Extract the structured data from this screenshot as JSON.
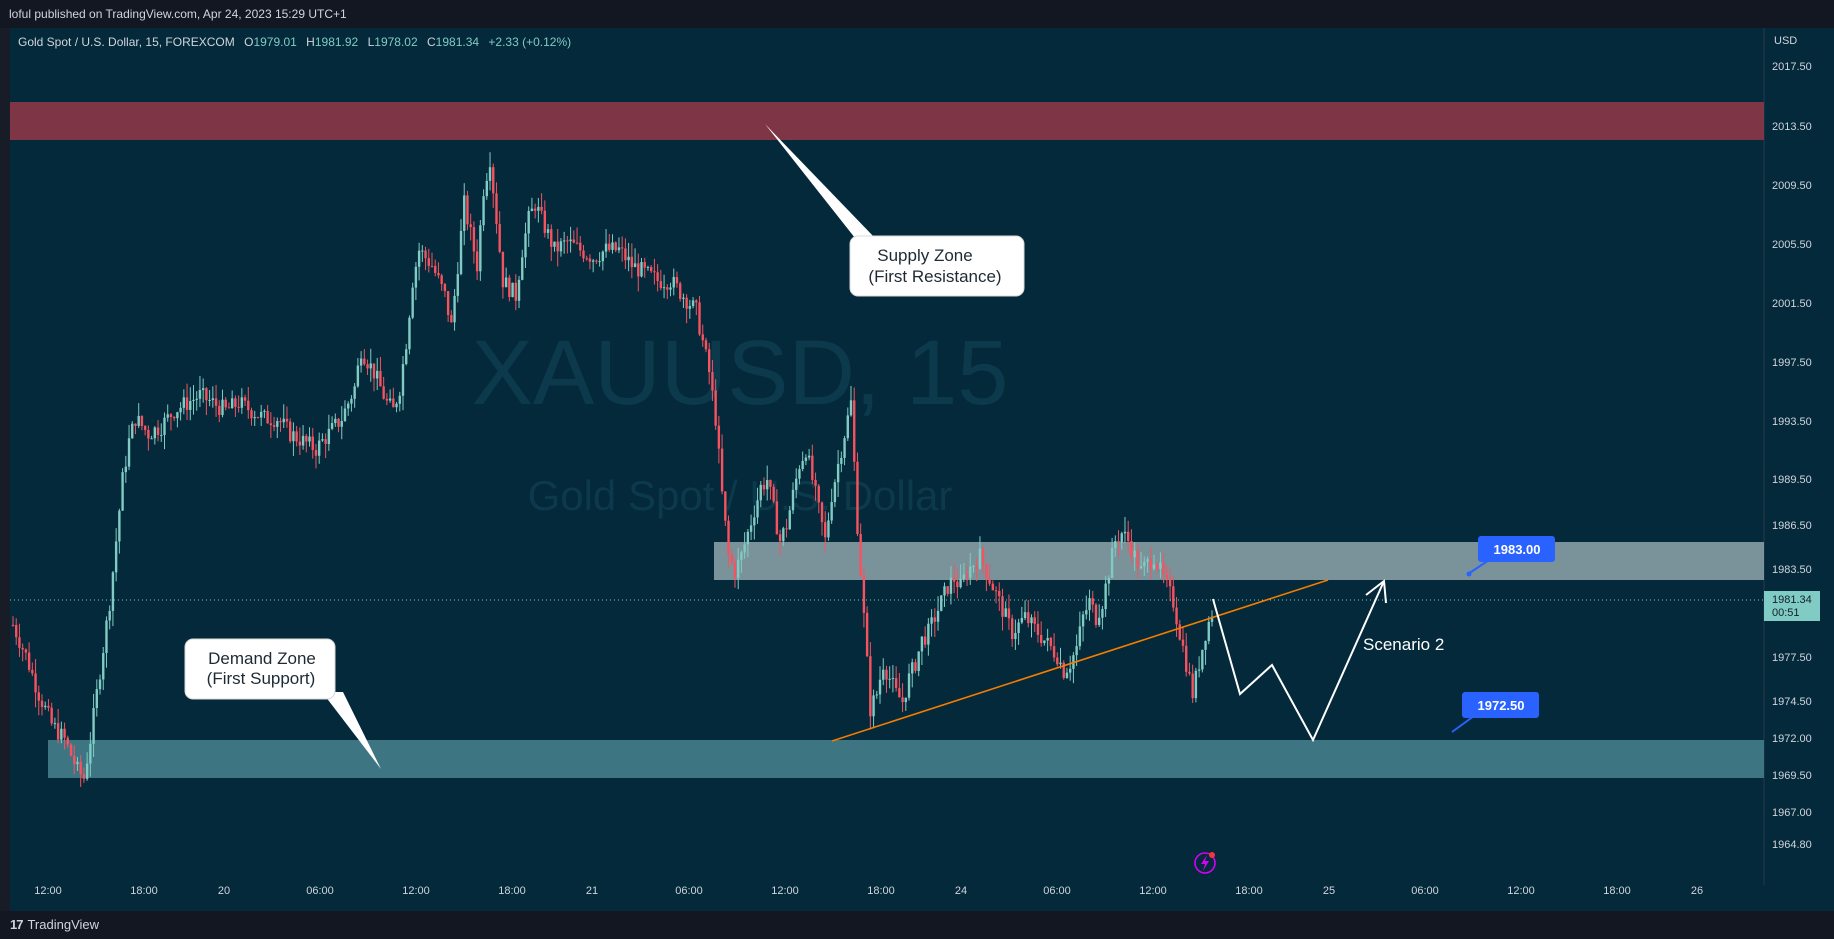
{
  "header": {
    "published_text": "loful published on TradingView.com, Apr 24, 2023 15:29 UTC+1"
  },
  "legend": {
    "symbol_text": "Gold Spot / U.S. Dollar, 15, FOREXCOM",
    "open_label": "O",
    "open_value": "1979.01",
    "high_label": "H",
    "high_value": "1981.92",
    "low_label": "L",
    "low_value": "1978.02",
    "close_label": "C",
    "close_value": "1981.34",
    "change_value": "+2.33 (+0.12%)"
  },
  "watermark": {
    "symbol": "XAUUSD, 15",
    "description": "Gold Spot / U.S. Dollar"
  },
  "price_axis": {
    "currency": "USD",
    "ticks": [
      "2017.50",
      "2013.50",
      "2009.50",
      "2005.50",
      "2001.50",
      "1997.50",
      "1993.50",
      "1989.50",
      "1986.50",
      "1983.50",
      "1977.50",
      "1974.50",
      "1972.00",
      "1969.50",
      "1967.00",
      "1964.80"
    ],
    "last_price_label": "1981.34",
    "countdown_label": "00:51"
  },
  "time_axis": {
    "ticks": [
      "12:00",
      "18:00",
      "20",
      "06:00",
      "12:00",
      "18:00",
      "21",
      "06:00",
      "12:00",
      "18:00",
      "24",
      "06:00",
      "12:00",
      "18:00",
      "25",
      "06:00",
      "12:00",
      "18:00",
      "26"
    ]
  },
  "annotations": {
    "supply_zone": "Supply Zone\n(First Resistance)",
    "supply_line1": "Supply Zone",
    "supply_line2": "(First Resistance)",
    "demand_line1": "Demand Zone",
    "demand_line2": "(First Support)",
    "scenario_label": "Scenario 2",
    "price_tag_upper": "1983.00",
    "price_tag_lower": "1972.50"
  },
  "footer": {
    "brand": "TradingView",
    "mark": "17"
  },
  "colors": {
    "background": "#03293a",
    "bull": "#80cbc4",
    "bear": "#f7525f",
    "supply_zone": "#7e3545",
    "demand_zone": "#3e7583",
    "middle_zone": "#8fa6ac",
    "trendline": "#f57c00",
    "tag": "#2962ff"
  },
  "chart_data": {
    "type": "candlestick",
    "title": "Gold Spot / U.S. Dollar, 15, FOREXCOM",
    "ylim": [
      1963.5,
      2019.5
    ],
    "last_price": 1981.34,
    "ohlc_last": {
      "open": 1979.01,
      "high": 1981.92,
      "low": 1978.02,
      "close": 1981.34,
      "change": 2.33,
      "change_pct": 0.12
    },
    "price_path": [
      [
        0,
        1980.5
      ],
      [
        4,
        1978.5
      ],
      [
        8,
        1976
      ],
      [
        12,
        1974
      ],
      [
        16,
        1973
      ],
      [
        20,
        1971
      ],
      [
        22,
        1970.5
      ],
      [
        24,
        1973
      ],
      [
        26,
        1976
      ],
      [
        28,
        1979
      ],
      [
        30,
        1982
      ],
      [
        32,
        1986
      ],
      [
        34,
        1990
      ],
      [
        36,
        1992.5
      ],
      [
        38,
        1994
      ],
      [
        42,
        1993
      ],
      [
        46,
        1993.5
      ],
      [
        50,
        1994.5
      ],
      [
        54,
        1995
      ],
      [
        58,
        1995.5
      ],
      [
        62,
        1995
      ],
      [
        66,
        1994.5
      ],
      [
        70,
        1995
      ],
      [
        74,
        1994.5
      ],
      [
        78,
        1994
      ],
      [
        82,
        1994
      ],
      [
        86,
        1993
      ],
      [
        90,
        1992.5
      ],
      [
        94,
        1992
      ],
      [
        98,
        1993
      ],
      [
        102,
        1994
      ],
      [
        106,
        1996
      ],
      [
        108,
        1998.5
      ],
      [
        112,
        1997
      ],
      [
        116,
        1995
      ],
      [
        118,
        1994.5
      ],
      [
        120,
        1996
      ],
      [
        122,
        1999
      ],
      [
        124,
        2003
      ],
      [
        126,
        2005
      ],
      [
        130,
        2004
      ],
      [
        134,
        2002
      ],
      [
        136,
        2000
      ],
      [
        138,
        2004
      ],
      [
        140,
        2008
      ],
      [
        144,
        2004
      ],
      [
        146,
        2009
      ],
      [
        148,
        2011
      ],
      [
        150,
        2007
      ],
      [
        152,
        2003
      ],
      [
        156,
        2002
      ],
      [
        158,
        2005
      ],
      [
        160,
        2007
      ],
      [
        162,
        2008
      ],
      [
        164,
        2007
      ],
      [
        166,
        2006
      ],
      [
        168,
        2005
      ],
      [
        172,
        2005.5
      ],
      [
        176,
        2005
      ],
      [
        180,
        2004.5
      ],
      [
        184,
        2005
      ],
      [
        188,
        2005
      ],
      [
        192,
        2004
      ],
      [
        196,
        2003.5
      ],
      [
        200,
        2003
      ],
      [
        204,
        2003
      ],
      [
        208,
        2002
      ],
      [
        212,
        2001
      ],
      [
        214,
        1999
      ],
      [
        216,
        1997
      ],
      [
        218,
        1994
      ],
      [
        220,
        1989
      ],
      [
        222,
        1985
      ],
      [
        224,
        1984
      ],
      [
        226,
        1985
      ],
      [
        228,
        1986.5
      ],
      [
        230,
        1988
      ],
      [
        232,
        1989.5
      ],
      [
        234,
        1990
      ],
      [
        236,
        1988
      ],
      [
        238,
        1986
      ],
      [
        240,
        1987
      ],
      [
        242,
        1989
      ],
      [
        244,
        1991
      ],
      [
        246,
        1992
      ],
      [
        248,
        1990
      ],
      [
        250,
        1988
      ],
      [
        252,
        1986
      ],
      [
        254,
        1989
      ],
      [
        256,
        1991
      ],
      [
        258,
        1993
      ],
      [
        260,
        1995
      ],
      [
        262,
        1987
      ],
      [
        264,
        1981
      ],
      [
        266,
        1975
      ],
      [
        268,
        1976
      ],
      [
        270,
        1978
      ],
      [
        272,
        1977
      ],
      [
        274,
        1976
      ],
      [
        276,
        1975.5
      ],
      [
        278,
        1977
      ],
      [
        280,
        1978
      ],
      [
        282,
        1979.5
      ],
      [
        284,
        1980
      ],
      [
        286,
        1981
      ],
      [
        288,
        1982
      ],
      [
        290,
        1983
      ],
      [
        292,
        1983.5
      ],
      [
        294,
        1983
      ],
      [
        296,
        1984
      ],
      [
        298,
        1984.5
      ],
      [
        300,
        1985
      ],
      [
        302,
        1984
      ],
      [
        304,
        1983
      ],
      [
        306,
        1982
      ],
      [
        308,
        1981
      ],
      [
        310,
        1980
      ],
      [
        312,
        1980.5
      ],
      [
        314,
        1981
      ],
      [
        316,
        1980.5
      ],
      [
        318,
        1980
      ],
      [
        320,
        1979.5
      ],
      [
        322,
        1979
      ],
      [
        324,
        1978.5
      ],
      [
        326,
        1977.5
      ],
      [
        328,
        1978
      ],
      [
        330,
        1979
      ],
      [
        332,
        1981
      ],
      [
        334,
        1982
      ],
      [
        336,
        1981
      ],
      [
        338,
        1982
      ],
      [
        340,
        1984
      ],
      [
        342,
        1986
      ],
      [
        344,
        1986.5
      ],
      [
        346,
        1986
      ],
      [
        348,
        1985
      ],
      [
        350,
        1984
      ],
      [
        352,
        1984.5
      ],
      [
        354,
        1985
      ],
      [
        356,
        1984
      ],
      [
        358,
        1983
      ],
      [
        360,
        1982
      ],
      [
        362,
        1980
      ],
      [
        364,
        1978
      ],
      [
        366,
        1976
      ],
      [
        368,
        1978
      ],
      [
        370,
        1980
      ],
      [
        372,
        1981.34
      ]
    ],
    "zones": [
      {
        "label": "Supply Zone (First Resistance)",
        "from": 2012.8,
        "to": 2015.5
      },
      {
        "label": "Demand Zone (First Support)",
        "from": 1969.5,
        "to": 1972.1
      },
      {
        "label": "",
        "from": 1982.8,
        "to": 1985.5
      }
    ],
    "trendline": [
      [
        1972.1,
        "24 14:30"
      ],
      [
        1983.0,
        "25 00:30"
      ]
    ],
    "scenario_path": [
      1981.3,
      1975.0,
      1977.3,
      1972.1,
      1983.0
    ]
  }
}
